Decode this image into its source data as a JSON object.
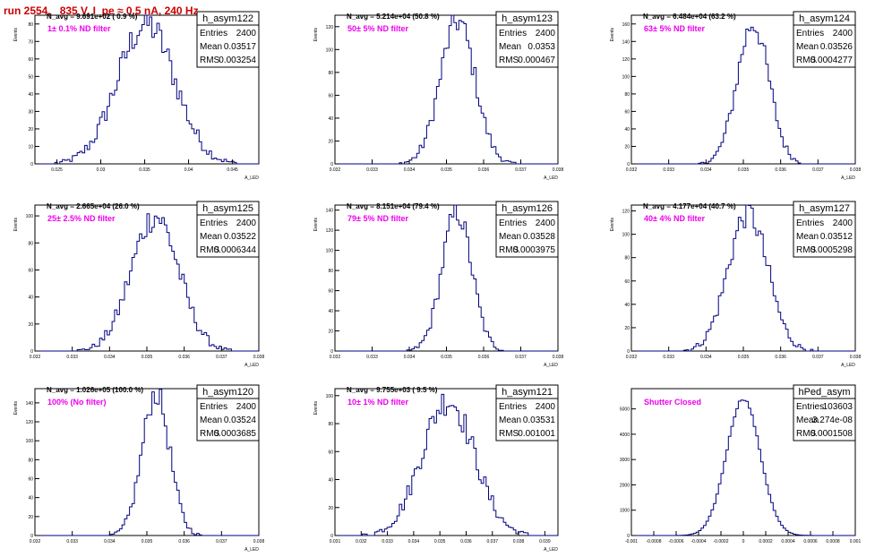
{
  "page_title": "run 2554,   835 V, I_pe ≈ 0.5 nA, 240 Hz",
  "colors": {
    "line": "#000080",
    "annotation": "#ee00ee",
    "title": "#cc0000",
    "axis": "#000000"
  },
  "chart_data": [
    {
      "type": "histogram",
      "title": "h_asym122",
      "ylabel": "Events",
      "xlabel": "A_LED",
      "navg": "N_avg = 9.691e+02 ( 0.9 %)",
      "annotation": "1± 0.1% ND filter",
      "stats": {
        "Entries": "2400",
        "Mean": "0.03517",
        "RMS": "0.003254"
      },
      "xlim": [
        0.0225,
        0.048
      ],
      "ylim": [
        0,
        85
      ],
      "xticks": [
        0.025,
        0.03,
        0.035,
        0.04,
        0.045
      ],
      "xtick_labels": [
        "0.025",
        "0.03",
        "0.035",
        "0.04",
        "0.045"
      ],
      "yticks": [
        0,
        10,
        20,
        30,
        40,
        50,
        60,
        70,
        80
      ],
      "ytick_labels": [
        "0",
        "10",
        "20",
        "30",
        "40",
        "50",
        "60",
        "70",
        "80"
      ],
      "peak": 80,
      "mean": 0.03517,
      "rms": 0.003254
    },
    {
      "type": "histogram",
      "title": "h_asym123",
      "ylabel": "Events",
      "xlabel": "A_LED",
      "navg": "N_avg = 5.214e+04 (50.8 %)",
      "annotation": "50± 5% ND filter",
      "stats": {
        "Entries": "2400",
        "Mean": "0.0353",
        "RMS": "0.000467"
      },
      "xlim": [
        0.032,
        0.038
      ],
      "ylim": [
        0,
        130
      ],
      "xticks": [
        0.032,
        0.033,
        0.034,
        0.035,
        0.036,
        0.037,
        0.038
      ],
      "xtick_labels": [
        "0.032",
        "0.033",
        "0.034",
        "0.035",
        "0.036",
        "0.037",
        "0.038"
      ],
      "yticks": [
        0,
        20,
        40,
        60,
        80,
        100,
        120
      ],
      "ytick_labels": [
        "0",
        "20",
        "40",
        "60",
        "80",
        "100",
        "120"
      ],
      "peak": 125,
      "mean": 0.0353,
      "rms": 0.000467
    },
    {
      "type": "histogram",
      "title": "h_asym124",
      "ylabel": "Events",
      "xlabel": "A_LED",
      "navg": "N_avg = 6.484e+04 (63.2 %)",
      "annotation": "63± 5% ND filter",
      "stats": {
        "Entries": "2400",
        "Mean": "0.03526",
        "RMS": "0.0004277"
      },
      "xlim": [
        0.032,
        0.038
      ],
      "ylim": [
        0,
        170
      ],
      "xticks": [
        0.032,
        0.033,
        0.034,
        0.035,
        0.036,
        0.037,
        0.038
      ],
      "xtick_labels": [
        "0.032",
        "0.033",
        "0.034",
        "0.035",
        "0.036",
        "0.037",
        "0.038"
      ],
      "yticks": [
        0,
        20,
        40,
        60,
        80,
        100,
        120,
        140,
        160
      ],
      "ytick_labels": [
        "0",
        "20",
        "40",
        "60",
        "80",
        "100",
        "120",
        "140",
        "160"
      ],
      "peak": 160,
      "mean": 0.03526,
      "rms": 0.0004277
    },
    {
      "type": "histogram",
      "title": "h_asym125",
      "ylabel": "Events",
      "xlabel": "A_LED",
      "navg": "N_avg = 2.665e+04 (26.0 %)",
      "annotation": "25± 2.5% ND filter",
      "stats": {
        "Entries": "2400",
        "Mean": "0.03522",
        "RMS": "0.0006344"
      },
      "xlim": [
        0.032,
        0.038
      ],
      "ylim": [
        0,
        108
      ],
      "xticks": [
        0.032,
        0.033,
        0.034,
        0.035,
        0.036,
        0.037,
        0.038
      ],
      "xtick_labels": [
        "0.032",
        "0.033",
        "0.034",
        "0.035",
        "0.036",
        "0.037",
        "0.038"
      ],
      "yticks": [
        0,
        20,
        40,
        60,
        80,
        100
      ],
      "ytick_labels": [
        "0",
        "20",
        "40",
        "60",
        "80",
        "100"
      ],
      "peak": 100,
      "mean": 0.03522,
      "rms": 0.0006344
    },
    {
      "type": "histogram",
      "title": "h_asym126",
      "ylabel": "Events",
      "xlabel": "A_LED",
      "navg": "N_avg = 8.151e+04 (79.4 %)",
      "annotation": "79± 5% ND filter",
      "stats": {
        "Entries": "2400",
        "Mean": "0.03528",
        "RMS": "0.0003975"
      },
      "xlim": [
        0.032,
        0.038
      ],
      "ylim": [
        0,
        145
      ],
      "xticks": [
        0.032,
        0.033,
        0.034,
        0.035,
        0.036,
        0.037,
        0.038
      ],
      "xtick_labels": [
        "0.032",
        "0.033",
        "0.034",
        "0.035",
        "0.036",
        "0.037",
        "0.038"
      ],
      "yticks": [
        0,
        20,
        40,
        60,
        80,
        100,
        120,
        140
      ],
      "ytick_labels": [
        "0",
        "20",
        "40",
        "60",
        "80",
        "100",
        "120",
        "140"
      ],
      "peak": 138,
      "mean": 0.03528,
      "rms": 0.0003975
    },
    {
      "type": "histogram",
      "title": "h_asym127",
      "ylabel": "Events",
      "xlabel": "A_LED",
      "navg": "N_avg = 4.177e+04 (40.7 %)",
      "annotation": "40± 4% ND filter",
      "stats": {
        "Entries": "2400",
        "Mean": "0.03512",
        "RMS": "0.0005298"
      },
      "xlim": [
        0.032,
        0.038
      ],
      "ylim": [
        0,
        125
      ],
      "xticks": [
        0.032,
        0.033,
        0.034,
        0.035,
        0.036,
        0.037,
        0.038
      ],
      "xtick_labels": [
        "0.032",
        "0.033",
        "0.034",
        "0.035",
        "0.036",
        "0.037",
        "0.038"
      ],
      "yticks": [
        0,
        20,
        40,
        60,
        80,
        100,
        120
      ],
      "ytick_labels": [
        "0",
        "20",
        "40",
        "60",
        "80",
        "100",
        "120"
      ],
      "peak": 118,
      "mean": 0.03512,
      "rms": 0.0005298
    },
    {
      "type": "histogram",
      "title": "h_asym120",
      "ylabel": "Events",
      "xlabel": "A_LED",
      "navg": "N_avg = 1.026e+05 (100.0 %)",
      "annotation": "100% (No filter)",
      "stats": {
        "Entries": "2400",
        "Mean": "0.03524",
        "RMS": "0.0003685"
      },
      "xlim": [
        0.032,
        0.038
      ],
      "ylim": [
        0,
        155
      ],
      "xticks": [
        0.032,
        0.033,
        0.034,
        0.035,
        0.036,
        0.037,
        0.038
      ],
      "xtick_labels": [
        "0.032",
        "0.033",
        "0.034",
        "0.035",
        "0.036",
        "0.037",
        "0.038"
      ],
      "yticks": [
        0,
        20,
        40,
        60,
        80,
        100,
        120,
        140
      ],
      "ytick_labels": [
        "0",
        "20",
        "40",
        "60",
        "80",
        "100",
        "120",
        "140"
      ],
      "peak": 150,
      "mean": 0.03524,
      "rms": 0.0003685
    },
    {
      "type": "histogram",
      "title": "h_asym121",
      "ylabel": "Events",
      "xlabel": "A_LED",
      "navg": "N_avg = 9.755e+03 ( 9.5 %)",
      "annotation": "10± 1% ND filter",
      "stats": {
        "Entries": "2400",
        "Mean": "0.03531",
        "RMS": "0.001001"
      },
      "xlim": [
        0.031,
        0.0395
      ],
      "ylim": [
        0,
        105
      ],
      "xticks": [
        0.031,
        0.032,
        0.033,
        0.034,
        0.035,
        0.036,
        0.037,
        0.038,
        0.039
      ],
      "xtick_labels": [
        "0.031",
        "0.032",
        "0.033",
        "0.034",
        "0.035",
        "0.036",
        "0.037",
        "0.038",
        "0.039"
      ],
      "yticks": [
        0,
        20,
        40,
        60,
        80,
        100
      ],
      "ytick_labels": [
        "0",
        "20",
        "40",
        "60",
        "80",
        "100"
      ],
      "peak": 97,
      "mean": 0.03531,
      "rms": 0.001001
    },
    {
      "type": "histogram",
      "title": "hPed_asym",
      "ylabel": "",
      "xlabel": "",
      "navg": "",
      "annotation": "Shutter Closed",
      "stats": {
        "Entries": "103603",
        "Mean": "3.274e-08",
        "RMS": "0.0001508"
      },
      "xlim": [
        -0.001,
        0.001
      ],
      "ylim": [
        0,
        5800
      ],
      "xticks": [
        -0.001,
        -0.0008,
        -0.0006,
        -0.0004,
        -0.0002,
        0,
        0.0002,
        0.0004,
        0.0006,
        0.0008,
        0.001
      ],
      "xtick_labels": [
        "-0.001",
        "-0.0008",
        "-0.0006",
        "-0.0004",
        "-0.0002",
        "0",
        "0.0002",
        "0.0004",
        "0.0006",
        "0.0008",
        "0.001"
      ],
      "yticks": [
        0,
        1000,
        2000,
        3000,
        4000,
        5000
      ],
      "ytick_labels": [
        "0",
        "1000",
        "2000",
        "3000",
        "4000",
        "5000"
      ],
      "peak": 5400,
      "mean": 0.0,
      "rms": 0.0001508
    }
  ]
}
